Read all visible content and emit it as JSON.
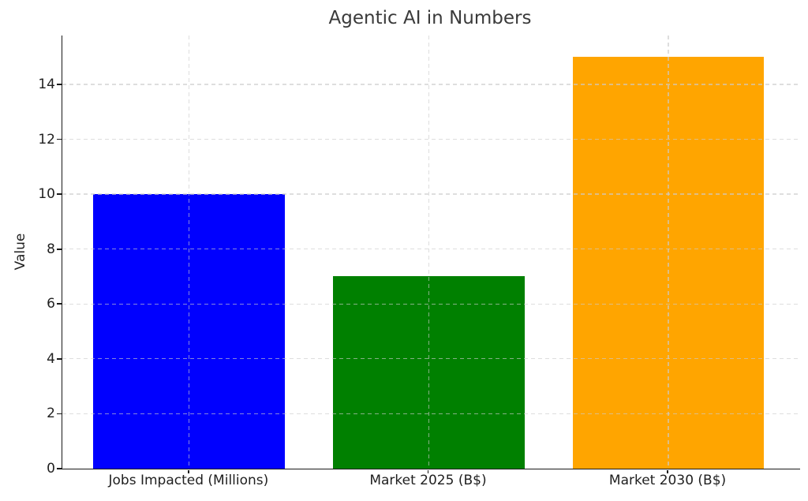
{
  "figure": {
    "title": "Agentic AI in Numbers",
    "ylabel": "Value"
  },
  "chart_data": {
    "type": "bar",
    "title": "Agentic AI in Numbers",
    "categories": [
      "Jobs Impacted (Millions)",
      "Market 2025 (B$)",
      "Market 2030 (B$)"
    ],
    "values": [
      10,
      7,
      15
    ],
    "bar_colors": [
      "#0000ff",
      "#008000",
      "#ffa500"
    ],
    "xlabel": "",
    "ylabel": "Value",
    "ylim": [
      0,
      15.78
    ],
    "xlim": [
      -0.53,
      2.55
    ],
    "yticks": [
      0,
      2,
      4,
      6,
      8,
      10,
      12,
      14
    ],
    "bar_width": 0.8,
    "grid": true,
    "grid_style": "dashed",
    "grid_color": "#cccccc",
    "axis_color": "#1a1a1a",
    "title_color": "#3a3a3a",
    "tick_label_color": "#1f1f1f",
    "background": "#ffffff",
    "legend": "none"
  }
}
